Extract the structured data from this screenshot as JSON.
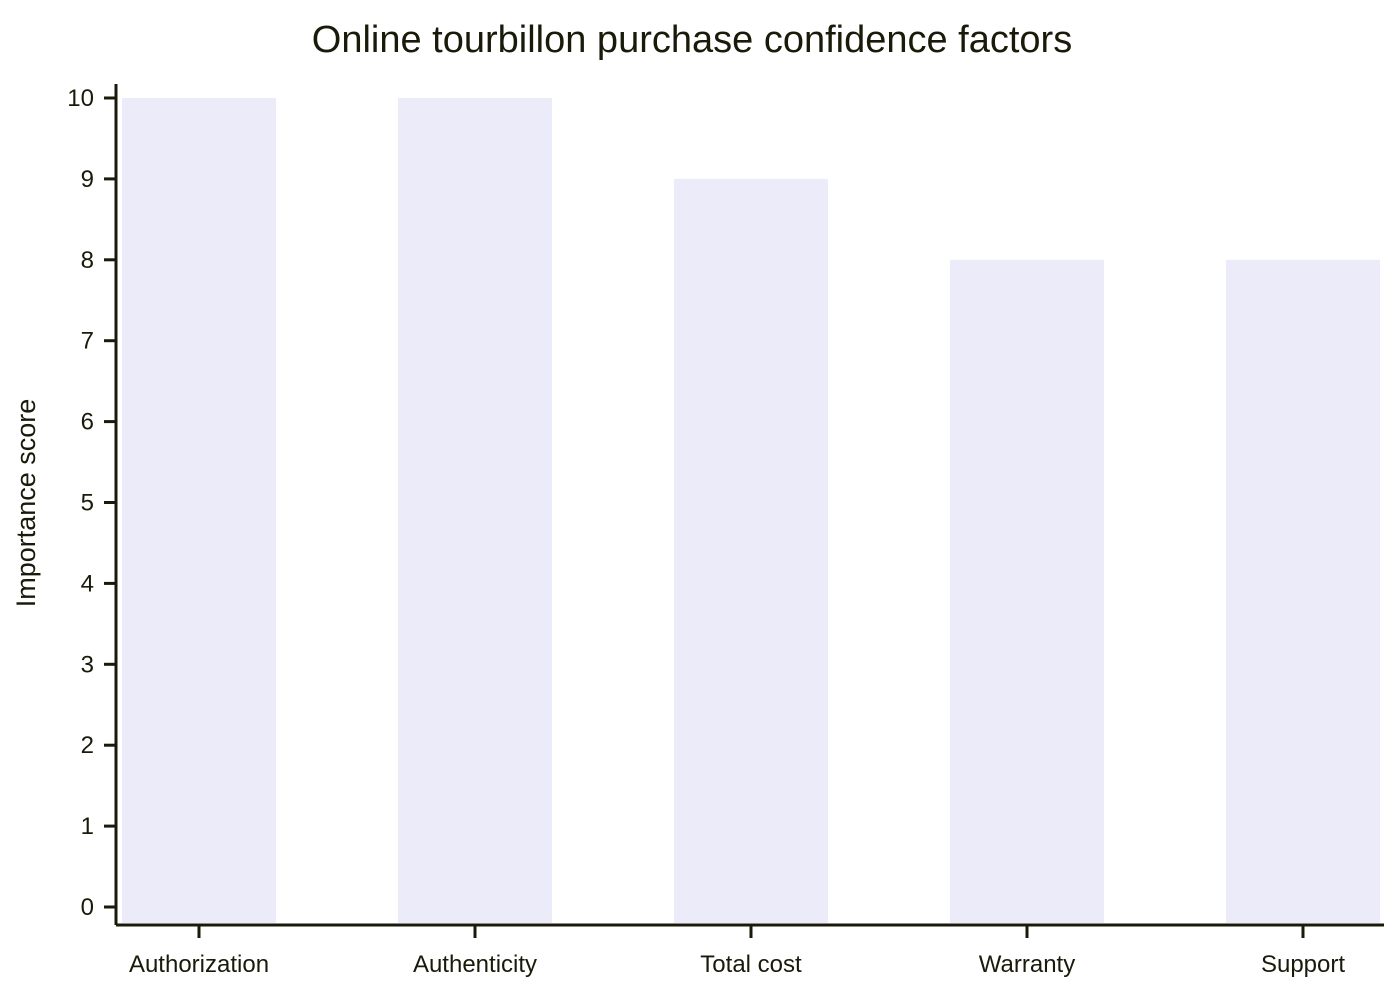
{
  "chart_data": {
    "type": "bar",
    "title": "Online tourbillon purchase confidence factors",
    "xlabel": "",
    "ylabel": "Importance score",
    "categories": [
      "Authorization",
      "Authenticity",
      "Total cost",
      "Warranty",
      "Support"
    ],
    "values": [
      10,
      10,
      9,
      8,
      8
    ],
    "ylim": [
      0,
      10
    ],
    "yticks": [
      "0",
      "1",
      "2",
      "3",
      "4",
      "5",
      "6",
      "7",
      "8",
      "9",
      "10"
    ],
    "grid": false,
    "legend": "none",
    "bar_color": "#ebebfa",
    "axis_color": "#1a1a0a"
  }
}
